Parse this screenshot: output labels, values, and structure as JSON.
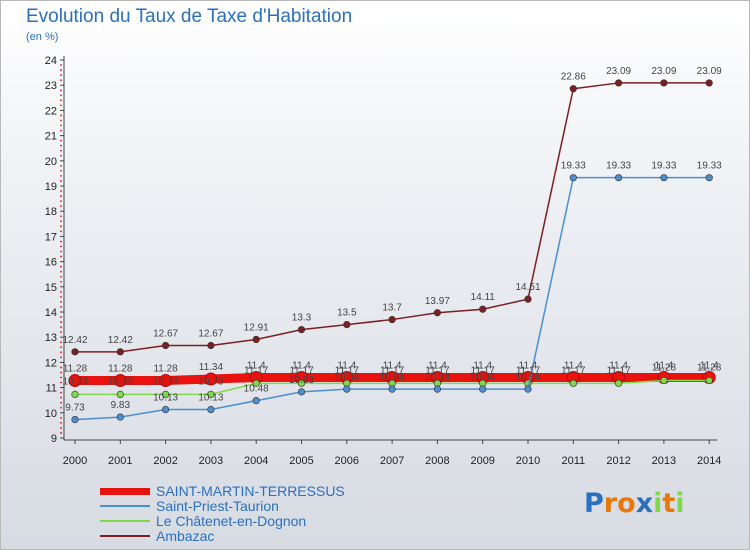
{
  "chart_data": {
    "type": "line",
    "title": "Evolution du Taux de Taxe d'Habitation",
    "subtitle": "(en %)",
    "x": [
      "2000",
      "2001",
      "2002",
      "2003",
      "2004",
      "2005",
      "2006",
      "2007",
      "2008",
      "2009",
      "2010",
      "2011",
      "2012",
      "2013",
      "2014"
    ],
    "ylim": [
      9,
      24
    ],
    "yticks": [
      9,
      10,
      11,
      12,
      13,
      14,
      15,
      16,
      17,
      18,
      19,
      20,
      21,
      22,
      23,
      24
    ],
    "grid": false,
    "legend_position": "bottom-left",
    "series": [
      {
        "name": "SAINT-MARTIN-TERRESSUS",
        "color": "#e8120e",
        "values": [
          11.28,
          11.28,
          11.28,
          11.34,
          11.4,
          11.4,
          11.4,
          11.4,
          11.4,
          11.4,
          11.4,
          11.4,
          11.4,
          11.4,
          11.4
        ]
      },
      {
        "name": "Saint-Priest-Taurion",
        "color": "#4b8fd0",
        "values": [
          9.73,
          9.83,
          10.13,
          10.13,
          10.48,
          10.83,
          10.94,
          10.94,
          10.94,
          10.94,
          10.94,
          19.33,
          19.33,
          19.33,
          19.33
        ]
      },
      {
        "name": "Le Châtenet-en-Dognon",
        "color": "#7fd94a",
        "values": [
          10.73,
          10.73,
          10.73,
          10.73,
          11.17,
          11.17,
          11.17,
          11.17,
          11.17,
          11.17,
          11.17,
          11.17,
          11.17,
          11.28,
          11.28
        ]
      },
      {
        "name": "Ambazac",
        "color": "#7b1f23",
        "values": [
          12.42,
          12.42,
          12.67,
          12.67,
          12.91,
          13.3,
          13.5,
          13.7,
          13.97,
          14.11,
          14.51,
          22.86,
          23.09,
          23.09,
          23.09
        ]
      }
    ],
    "labels": {
      "SAINT-MARTIN-TERRESSUS": [
        "11.28",
        "11.28",
        "11.28",
        "11.34",
        "11.4",
        "11.4",
        "11.4",
        "11.4",
        "11.4",
        "11.4",
        "11.4",
        "11.4",
        "11.4",
        "11.4",
        "11.4"
      ],
      "Saint-Priest-Taurion": [
        "9.73",
        "9.83",
        "10.13",
        "10.13",
        "10.48",
        "10.83",
        "10.94",
        "10.94",
        "10.94",
        "10.94",
        "10.94",
        "19.33",
        "19.33",
        "19.33",
        "19.33"
      ],
      "Le Châtenet-en-Dognon": [
        "10.73",
        "10.73",
        "10.73",
        "10.73",
        "11.17",
        "11.17",
        "11.17",
        "11.17",
        "11.17",
        "11.17",
        "11.17",
        "11.17",
        "11.17",
        "11.28",
        "11.28"
      ],
      "Ambazac": [
        "12.42",
        "12.42",
        "12.67",
        "12.67",
        "12.91",
        "13.3",
        "13.5",
        "13.7",
        "13.97",
        "14.11",
        "14.51",
        "22.86",
        "23.09",
        "23.09",
        "23.09"
      ]
    }
  },
  "logo": {
    "text": "Proxiti",
    "letters": [
      "P",
      "r",
      "o",
      "x",
      "i",
      "t",
      "i"
    ],
    "colors": [
      "#2a70bf",
      "#e8780c",
      "#e8780c",
      "#2a70bf",
      "#7fd94a",
      "#e8780c",
      "#7fd94a"
    ]
  }
}
